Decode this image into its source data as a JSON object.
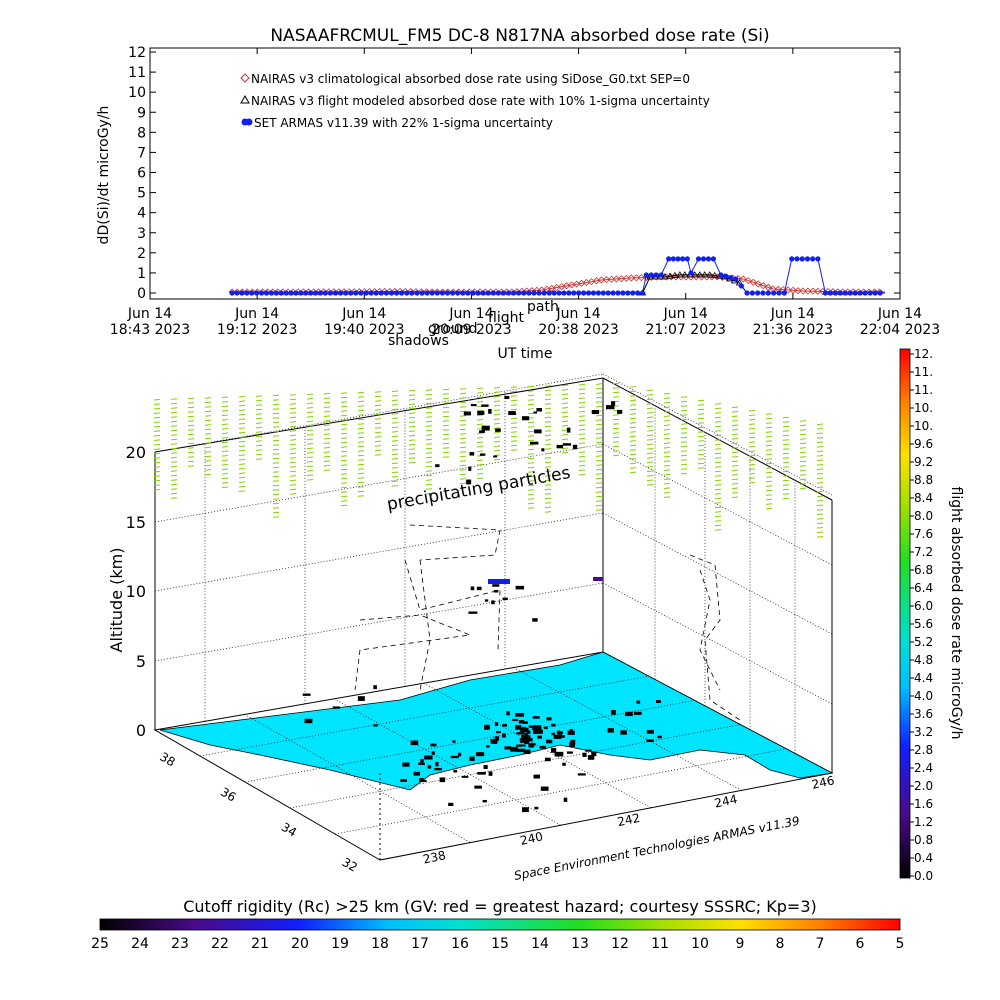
{
  "title": "NASAAFRCMUL_FM5 DC-8   N817NA absorbed dose rate (Si)",
  "top_chart": {
    "ylabel": "dD(Si)/dt microGy/h",
    "xlabel": "UT time",
    "y_ticks": [
      "0",
      "1",
      "2",
      "3",
      "4",
      "5",
      "6",
      "7",
      "8",
      "9",
      "10",
      "11",
      "12"
    ],
    "x_ticks": [
      {
        "l1": "Jun 14",
        "l2": "18:43 2023"
      },
      {
        "l1": "Jun 14",
        "l2": "19:12 2023"
      },
      {
        "l1": "Jun 14",
        "l2": "19:40 2023"
      },
      {
        "l1": "Jun 14",
        "l2": "20:09 2023"
      },
      {
        "l1": "Jun 14",
        "l2": "20:38 2023"
      },
      {
        "l1": "Jun 14",
        "l2": "21:07 2023"
      },
      {
        "l1": "Jun 14",
        "l2": "21:36 2023"
      },
      {
        "l1": "Jun 14",
        "l2": "22:04 2023"
      }
    ],
    "legend": [
      "NAIRAS v3 climatological absorbed dose rate using SiDose_G0.txt SEP=0",
      "NAIRAS v3 flight modeled absorbed dose rate with 10% 1-sigma uncertainty",
      "SET ARMAS v11.39 with 22% 1-sigma uncertainty"
    ],
    "overlay_labels": [
      "shadows",
      "ground",
      "flight",
      "path"
    ]
  },
  "chart_data": {
    "type": "line",
    "title": "NASAAFRCMUL_FM5 DC-8   N817NA absorbed dose rate (Si)",
    "xlabel": "UT time",
    "ylabel": "dD(Si)/dt microGy/h",
    "ylim": [
      0,
      12
    ],
    "x_range": [
      "2023-06-14 18:43",
      "2023-06-14 22:04"
    ],
    "series": [
      {
        "name": "NAIRAS v3 climatological absorbed dose rate using SiDose_G0.txt SEP=0",
        "color": "#cc3333",
        "marker": "diamond",
        "points": [
          [
            "19:05",
            0.05
          ],
          [
            "19:20",
            0.05
          ],
          [
            "19:35",
            0.06
          ],
          [
            "19:50",
            0.08
          ],
          [
            "20:00",
            0.05
          ],
          [
            "20:10",
            0.05
          ],
          [
            "20:20",
            0.05
          ],
          [
            "20:28",
            0.15
          ],
          [
            "20:36",
            0.4
          ],
          [
            "20:44",
            0.65
          ],
          [
            "20:52",
            0.75
          ],
          [
            "21:00",
            0.8
          ],
          [
            "21:08",
            0.8
          ],
          [
            "21:15",
            0.8
          ],
          [
            "21:22",
            0.7
          ],
          [
            "21:30",
            0.2
          ],
          [
            "21:38",
            0.1
          ],
          [
            "21:50",
            0.05
          ],
          [
            "22:00",
            0.05
          ]
        ]
      },
      {
        "name": "NAIRAS v3 flight modeled absorbed dose rate with 10% 1-sigma uncertainty",
        "color": "#000000",
        "marker": "triangle",
        "points": [
          [
            "20:55",
            0.0
          ],
          [
            "20:57",
            0.8
          ],
          [
            "21:01",
            0.8
          ],
          [
            "21:05",
            0.9
          ],
          [
            "21:09",
            0.9
          ],
          [
            "21:13",
            0.9
          ],
          [
            "21:17",
            0.8
          ],
          [
            "21:21",
            0.5
          ],
          [
            "21:23",
            0.0
          ]
        ]
      },
      {
        "name": "SET ARMAS v11.39 with 22% 1-sigma uncertainty",
        "color": "#1020ee",
        "marker": "circle",
        "points": [
          [
            "19:05",
            0
          ],
          [
            "19:30",
            0
          ],
          [
            "20:00",
            0
          ],
          [
            "20:30",
            0
          ],
          [
            "20:55",
            0
          ],
          [
            "20:56",
            0.9
          ],
          [
            "21:00",
            0.9
          ],
          [
            "21:02",
            1.7
          ],
          [
            "21:07",
            1.7
          ],
          [
            "21:08",
            1.0
          ],
          [
            "21:10",
            1.7
          ],
          [
            "21:14",
            1.7
          ],
          [
            "21:16",
            0.9
          ],
          [
            "21:20",
            0.7
          ],
          [
            "21:23",
            0
          ],
          [
            "21:33",
            0
          ],
          [
            "21:35",
            1.7
          ],
          [
            "21:42",
            1.7
          ],
          [
            "21:44",
            0
          ],
          [
            "22:00",
            0
          ]
        ]
      }
    ]
  },
  "three_d": {
    "zlabel": "Altitude (km)",
    "z_ticks": [
      "0",
      "5",
      "10",
      "15",
      "20"
    ],
    "lat_ticks": [
      "38",
      "36",
      "34",
      "32"
    ],
    "lon_ticks": [
      "238",
      "240",
      "242",
      "244",
      "246"
    ],
    "credit": "Space Environment Technologies ARMAS v11.39",
    "annotation": "precipitating particles"
  },
  "right_colorbar": {
    "label": "flight absorbed dose rate microGy/h",
    "ticks": [
      "0.0",
      "0.4",
      "0.8",
      "1.2",
      "1.6",
      "2.0",
      "2.4",
      "2.8",
      "3.2",
      "3.6",
      "4.0",
      "4.4",
      "4.8",
      "5.2",
      "5.6",
      "6.0",
      "6.4",
      "6.8",
      "7.2",
      "7.6",
      "8.0",
      "8.4",
      "8.8",
      "9.2",
      "9.6",
      "10.",
      "10.",
      "11.",
      "11.",
      "12."
    ]
  },
  "bottom_colorbar": {
    "title": "Cutoff rigidity (Rc) >25 km (GV: red = greatest hazard; courtesy SSSRC; Kp=3)",
    "ticks": [
      "25",
      "24",
      "23",
      "22",
      "21",
      "20",
      "19",
      "18",
      "17",
      "16",
      "15",
      "14",
      "13",
      "12",
      "11",
      "10",
      "9",
      "8",
      "7",
      "6",
      "5"
    ]
  },
  "colors": {
    "land_fill": "#00e5ff",
    "particles": "#7fd400",
    "series_model": "#cc3333",
    "series_armas": "#1020ee"
  }
}
